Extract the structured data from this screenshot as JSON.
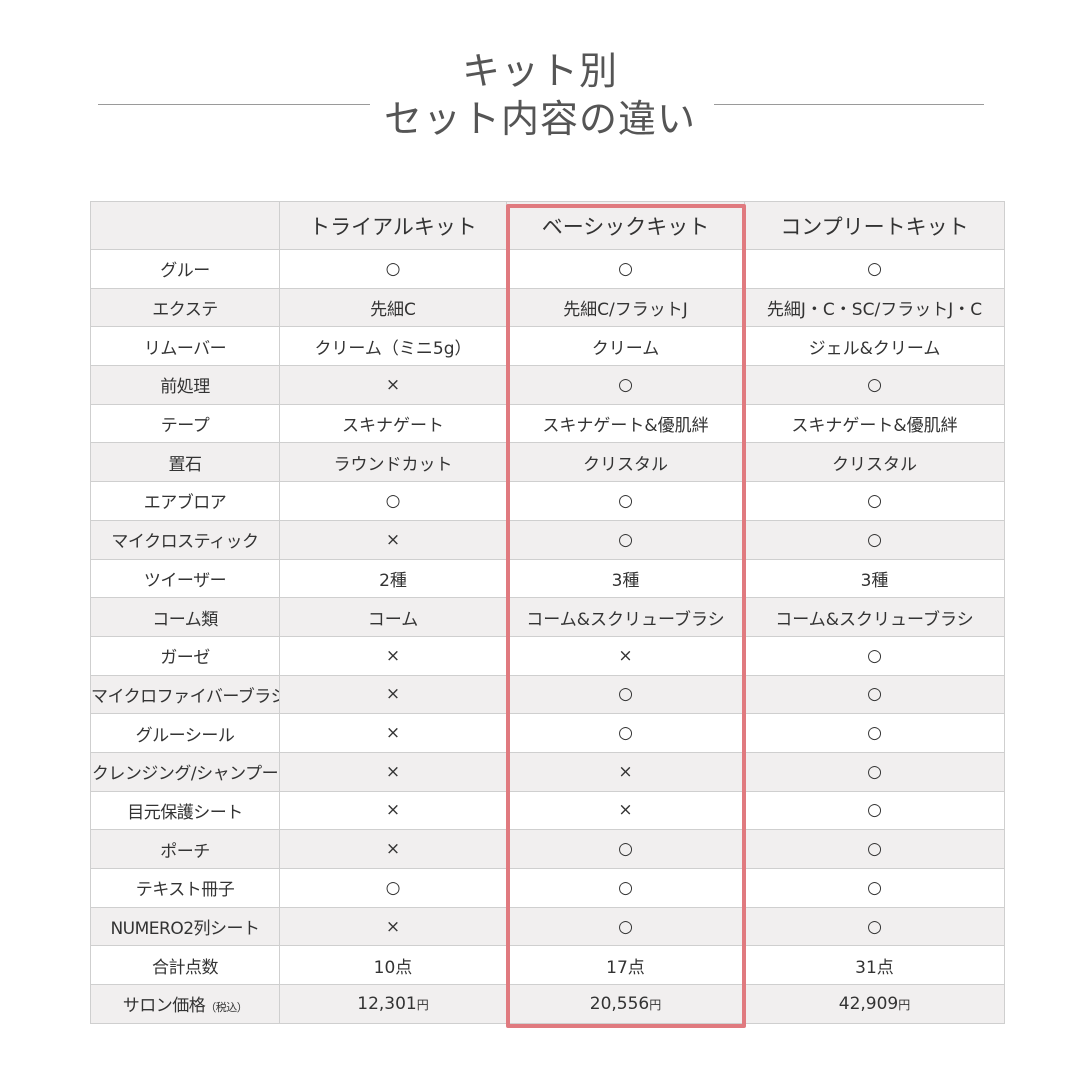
{
  "title": {
    "line1": "キット別",
    "line2": "セット内容の違い"
  },
  "table": {
    "columns": [
      "",
      "トライアルキット",
      "ベーシックキット",
      "コンプリートキット"
    ],
    "rows": [
      {
        "label": "グルー",
        "trial": "○",
        "basic": "○",
        "complete": "○"
      },
      {
        "label": "エクステ",
        "trial": "先細C",
        "basic": "先細C/フラットJ",
        "complete": "先細J・C・SC/フラットJ・C"
      },
      {
        "label": "リムーバー",
        "trial": "クリーム（ミニ5g）",
        "basic": "クリーム",
        "complete": "ジェル&クリーム"
      },
      {
        "label": "前処理",
        "trial": "×",
        "basic": "○",
        "complete": "○"
      },
      {
        "label": "テープ",
        "trial": "スキナゲート",
        "basic": "スキナゲート&優肌絆",
        "complete": "スキナゲート&優肌絆"
      },
      {
        "label": "置石",
        "trial": "ラウンドカット",
        "basic": "クリスタル",
        "complete": "クリスタル"
      },
      {
        "label": "エアブロア",
        "trial": "○",
        "basic": "○",
        "complete": "○"
      },
      {
        "label": "マイクロスティック",
        "trial": "×",
        "basic": "○",
        "complete": "○"
      },
      {
        "label": "ツイーザー",
        "trial": "2種",
        "basic": "3種",
        "complete": "3種"
      },
      {
        "label": "コーム類",
        "trial": "コーム",
        "basic": "コーム&スクリューブラシ",
        "complete": "コーム&スクリューブラシ"
      },
      {
        "label": "ガーゼ",
        "trial": "×",
        "basic": "×",
        "complete": "○"
      },
      {
        "label": "マイクロファイバーブラシ",
        "trial": "×",
        "basic": "○",
        "complete": "○"
      },
      {
        "label": "グルーシール",
        "trial": "×",
        "basic": "○",
        "complete": "○"
      },
      {
        "label": "クレンジング/シャンプー",
        "trial": "×",
        "basic": "×",
        "complete": "○"
      },
      {
        "label": "目元保護シート",
        "trial": "×",
        "basic": "×",
        "complete": "○"
      },
      {
        "label": "ポーチ",
        "trial": "×",
        "basic": "○",
        "complete": "○"
      },
      {
        "label": "テキスト冊子",
        "trial": "○",
        "basic": "○",
        "complete": "○"
      },
      {
        "label": "NUMERO2列シート",
        "trial": "×",
        "basic": "○",
        "complete": "○"
      },
      {
        "label": "合計点数",
        "trial": "10点",
        "basic": "17点",
        "complete": "31点"
      }
    ],
    "price_row": {
      "label": "サロン価格",
      "label_note": "（税込）",
      "trial": "12,301",
      "basic": "20,556",
      "complete": "42,909",
      "currency": "円"
    }
  },
  "colors": {
    "highlight_border": "#e07a7f",
    "stripe": "#f1efef",
    "grid": "#cfcfcf",
    "title": "#555555"
  }
}
